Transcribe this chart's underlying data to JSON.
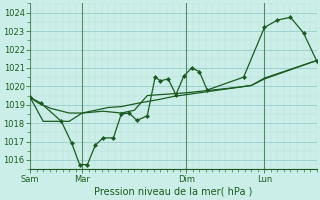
{
  "title": "",
  "xlabel": "Pression niveau de la mer( hPa )",
  "bg_color": "#cceee8",
  "grid_color_major": "#99cccc",
  "grid_color_minor": "#bbdddd",
  "line_color": "#1a5c20",
  "ylim": [
    1015.5,
    1024.5
  ],
  "yticks": [
    1016,
    1017,
    1018,
    1019,
    1020,
    1021,
    1022,
    1023,
    1024
  ],
  "xtick_labels": [
    "Sam",
    "Mar",
    "Dim",
    "Lun"
  ],
  "xtick_positions": [
    0,
    2,
    6,
    9
  ],
  "xlim": [
    0,
    11
  ],
  "series1": [
    [
      0.0,
      1019.4
    ],
    [
      0.4,
      1019.1
    ],
    [
      1.2,
      1018.1
    ],
    [
      1.6,
      1016.9
    ],
    [
      1.9,
      1015.75
    ],
    [
      2.2,
      1015.75
    ],
    [
      2.5,
      1016.8
    ],
    [
      2.8,
      1017.2
    ],
    [
      3.2,
      1017.2
    ],
    [
      3.5,
      1018.5
    ],
    [
      3.8,
      1018.55
    ],
    [
      4.1,
      1018.15
    ],
    [
      4.5,
      1018.4
    ],
    [
      4.8,
      1020.5
    ],
    [
      5.0,
      1020.3
    ],
    [
      5.3,
      1020.4
    ],
    [
      5.6,
      1019.55
    ],
    [
      5.9,
      1020.55
    ],
    [
      6.2,
      1021.0
    ],
    [
      6.5,
      1020.8
    ],
    [
      6.8,
      1019.8
    ],
    [
      8.2,
      1020.5
    ],
    [
      9.0,
      1023.2
    ],
    [
      9.5,
      1023.6
    ],
    [
      10.0,
      1023.75
    ],
    [
      10.5,
      1022.9
    ],
    [
      11.0,
      1021.4
    ]
  ],
  "series2": [
    [
      0.0,
      1019.4
    ],
    [
      0.3,
      1019.1
    ],
    [
      0.8,
      1018.8
    ],
    [
      1.5,
      1018.55
    ],
    [
      2.0,
      1018.55
    ],
    [
      2.5,
      1018.7
    ],
    [
      3.0,
      1018.85
    ],
    [
      3.5,
      1018.9
    ],
    [
      4.2,
      1019.1
    ],
    [
      5.0,
      1019.3
    ],
    [
      5.5,
      1019.45
    ],
    [
      6.0,
      1019.55
    ],
    [
      6.5,
      1019.65
    ],
    [
      7.0,
      1019.75
    ],
    [
      7.5,
      1019.85
    ],
    [
      8.0,
      1019.95
    ],
    [
      8.5,
      1020.05
    ],
    [
      9.0,
      1020.4
    ],
    [
      11.0,
      1021.4
    ]
  ],
  "series3": [
    [
      0.0,
      1019.4
    ],
    [
      0.5,
      1018.1
    ],
    [
      1.0,
      1018.1
    ],
    [
      1.5,
      1018.1
    ],
    [
      2.0,
      1018.55
    ],
    [
      2.8,
      1018.65
    ],
    [
      3.5,
      1018.55
    ],
    [
      4.0,
      1018.7
    ],
    [
      4.5,
      1019.5
    ],
    [
      5.0,
      1019.55
    ],
    [
      5.5,
      1019.6
    ],
    [
      6.0,
      1019.65
    ],
    [
      7.0,
      1019.8
    ],
    [
      8.0,
      1019.95
    ],
    [
      8.5,
      1020.05
    ],
    [
      9.0,
      1020.45
    ],
    [
      11.0,
      1021.4
    ]
  ]
}
